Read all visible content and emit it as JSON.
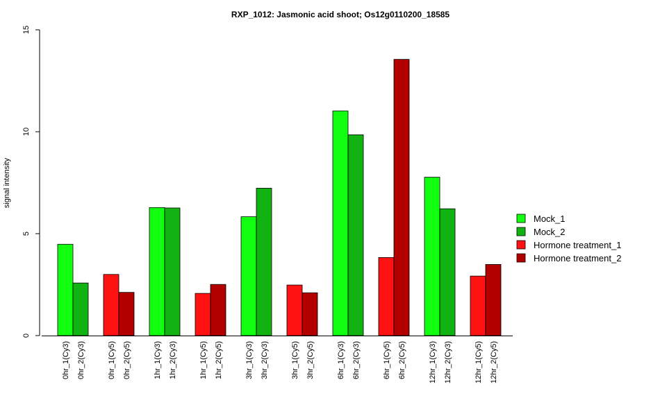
{
  "chart_data": {
    "type": "bar",
    "title": "RXP_1012: Jasmonic acid shoot; Os12g0110200_18585",
    "xlabel": "",
    "ylabel": "signal intensity",
    "ylim": [
      0,
      15
    ],
    "yticks": [
      "0",
      "5",
      "10",
      "15"
    ],
    "grid": false,
    "legend_position": "right",
    "bars": [
      {
        "label": "0hr_1(Cy3)",
        "value": 4.48,
        "series": "Mock_1"
      },
      {
        "label": "0hr_2(Cy3)",
        "value": 2.58,
        "series": "Mock_2"
      },
      {
        "label": "0hr_1(Cy5)",
        "value": 3.0,
        "series": "Hormone treatment_1"
      },
      {
        "label": "0hr_2(Cy5)",
        "value": 2.12,
        "series": "Hormone treatment_2"
      },
      {
        "label": "1hr_1(Cy3)",
        "value": 6.28,
        "series": "Mock_1"
      },
      {
        "label": "1hr_2(Cy3)",
        "value": 6.26,
        "series": "Mock_2"
      },
      {
        "label": "1hr_1(Cy5)",
        "value": 2.07,
        "series": "Hormone treatment_1"
      },
      {
        "label": "1hr_2(Cy5)",
        "value": 2.51,
        "series": "Hormone treatment_2"
      },
      {
        "label": "3hr_1(Cy3)",
        "value": 5.83,
        "series": "Mock_1"
      },
      {
        "label": "3hr_2(Cy3)",
        "value": 7.23,
        "series": "Mock_2"
      },
      {
        "label": "3hr_1(Cy5)",
        "value": 2.48,
        "series": "Hormone treatment_1"
      },
      {
        "label": "3hr_2(Cy5)",
        "value": 2.1,
        "series": "Hormone treatment_2"
      },
      {
        "label": "6hr_1(Cy3)",
        "value": 11.02,
        "series": "Mock_1"
      },
      {
        "label": "6hr_2(Cy3)",
        "value": 9.85,
        "series": "Mock_2"
      },
      {
        "label": "6hr_1(Cy5)",
        "value": 3.83,
        "series": "Hormone treatment_1"
      },
      {
        "label": "6hr_2(Cy5)",
        "value": 13.55,
        "series": "Hormone treatment_2"
      },
      {
        "label": "12hr_1(Cy3)",
        "value": 7.77,
        "series": "Mock_1"
      },
      {
        "label": "12hr_2(Cy3)",
        "value": 6.22,
        "series": "Mock_2"
      },
      {
        "label": "12hr_1(Cy5)",
        "value": 2.92,
        "series": "Hormone treatment_1"
      },
      {
        "label": "12hr_2(Cy5)",
        "value": 3.49,
        "series": "Hormone treatment_2"
      }
    ],
    "legend": [
      {
        "name": "Mock_1",
        "color": "#12ff12"
      },
      {
        "name": "Mock_2",
        "color": "#12b212"
      },
      {
        "name": "Hormone treatment_1",
        "color": "#ff1212"
      },
      {
        "name": "Hormone treatment_2",
        "color": "#b20000"
      }
    ]
  }
}
